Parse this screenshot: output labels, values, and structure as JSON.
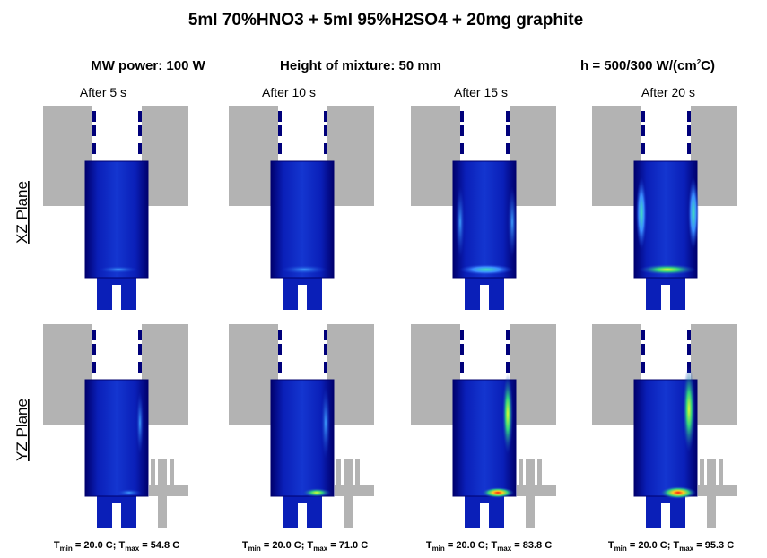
{
  "title": "5ml 70%HNO3 + 5ml 95%H2SO4 + 20mg graphite",
  "conditions": {
    "power": "MW power: 100 W",
    "height": "Height of mixture: 50 mm",
    "h": [
      "h = 500/300 W/(cm",
      "2",
      "C)"
    ]
  },
  "columns": [
    "After 5 s",
    "After 10 s",
    "After 15 s",
    "After 20 s"
  ],
  "rows": [
    "XZ Plane",
    "YZ Plane"
  ],
  "footers": [
    [
      "T",
      "min",
      " = 20.0 C; T",
      "max",
      " = 54.8 C"
    ],
    [
      "T",
      "min",
      " = 20.0 C; T",
      "max",
      " = 71.0 C"
    ],
    [
      "T",
      "min",
      " = 20.0 C; T",
      "max",
      " = 83.8 C"
    ],
    [
      "T",
      "min",
      " = 20.0 C; T",
      "max",
      " = 95.3 C"
    ]
  ]
}
